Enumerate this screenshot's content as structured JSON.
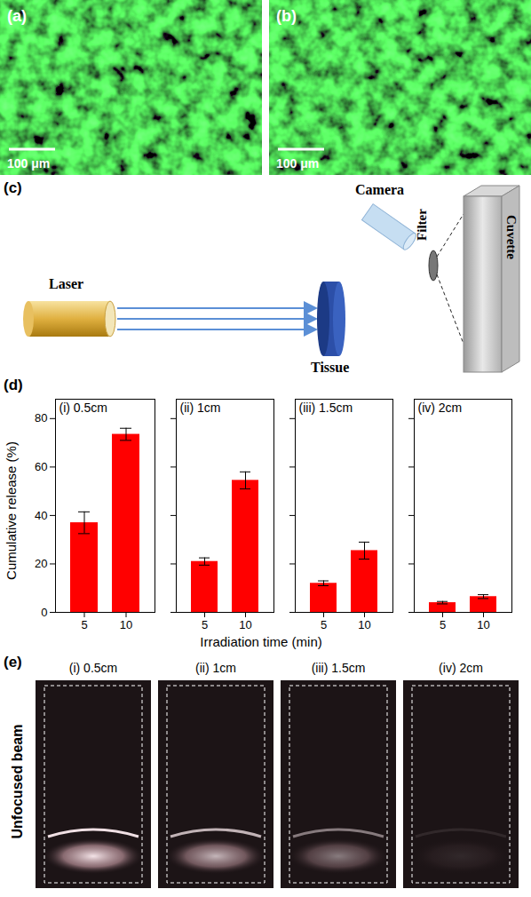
{
  "panel_a": {
    "label": "(a)",
    "scale_bar": "100 μm"
  },
  "panel_b": {
    "label": "(b)",
    "scale_bar": "100 μm"
  },
  "panel_c": {
    "label": "(c)",
    "laser": "Laser",
    "tissue": "Tissue",
    "camera": "Camera",
    "filter": "Filter",
    "cuvette": "Cuvette"
  },
  "panel_d": {
    "label": "(d)",
    "ylabel": "Cumulative release (%)",
    "xlabel": "Irradiation time (min)"
  },
  "chart_data": [
    {
      "type": "bar",
      "title": "(i) 0.5cm",
      "categories": [
        "5",
        "10"
      ],
      "values": [
        37,
        73.5
      ],
      "errors": [
        4.5,
        2.5
      ],
      "color": "#ff0000",
      "ylim": [
        0,
        88
      ],
      "yticks": [
        0,
        20,
        40,
        60,
        80
      ]
    },
    {
      "type": "bar",
      "title": "(ii) 1cm",
      "categories": [
        "5",
        "10"
      ],
      "values": [
        21,
        54.5
      ],
      "errors": [
        1.5,
        3.5
      ],
      "color": "#ff0000",
      "ylim": [
        0,
        88
      ],
      "yticks": [
        0,
        20,
        40,
        60,
        80
      ],
      "tick_labels": "x"
    },
    {
      "type": "bar",
      "title": "(iii) 1.5cm",
      "categories": [
        "5",
        "10"
      ],
      "values": [
        12,
        25.5
      ],
      "errors": [
        1,
        3.5
      ],
      "color": "#ff0000",
      "ylim": [
        0,
        88
      ],
      "yticks": [
        0,
        20,
        40,
        60,
        80
      ],
      "tick_labels": "x"
    },
    {
      "type": "bar",
      "title": "(iv) 2cm",
      "categories": [
        "5",
        "10"
      ],
      "values": [
        4,
        6.5
      ],
      "errors": [
        0.5,
        0.8
      ],
      "color": "#ff0000",
      "ylim": [
        0,
        88
      ],
      "yticks": [
        0,
        20,
        40,
        60,
        80
      ],
      "tick_labels": "x"
    }
  ],
  "panel_e": {
    "label": "(e)",
    "row_label": "Unfocused beam",
    "titles": [
      "(i) 0.5cm",
      "(ii) 1cm",
      "(iii) 1.5cm",
      "(iv) 2cm"
    ]
  }
}
